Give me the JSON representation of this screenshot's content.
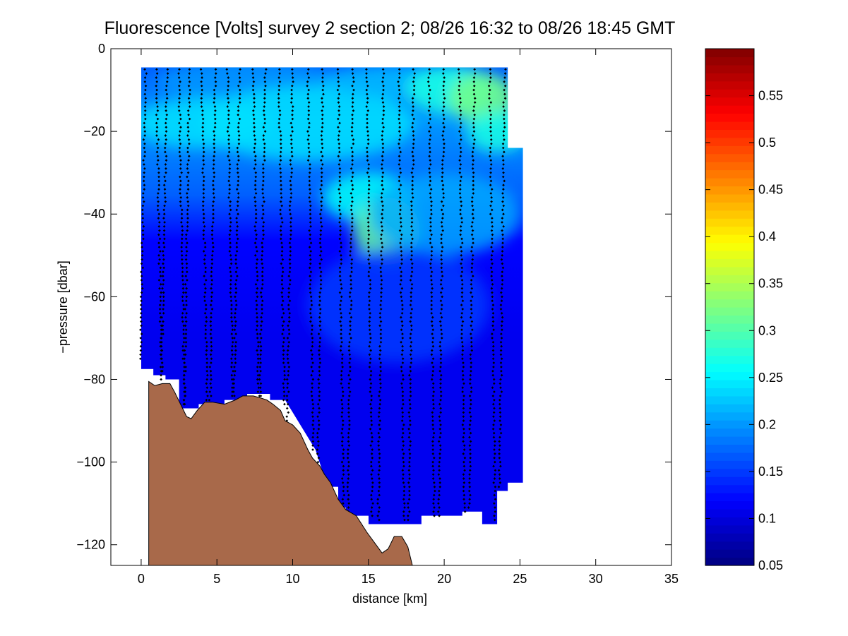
{
  "chart_data": {
    "type": "heatmap",
    "title": "Fluorescence [Volts] survey 2 section 2; 08/26 16:32 to 08/26 18:45 GMT",
    "xlabel": "distance [km]",
    "ylabel": "−pressure [dbar]",
    "xlim": [
      -2,
      35
    ],
    "ylim": [
      -125,
      0
    ],
    "x_ticks": [
      0,
      5,
      10,
      15,
      20,
      25,
      30,
      35
    ],
    "x_tick_labels": [
      "0",
      "5",
      "10",
      "15",
      "20",
      "25",
      "30",
      "35"
    ],
    "y_ticks": [
      0,
      -20,
      -40,
      -60,
      -80,
      -100,
      -120
    ],
    "y_tick_labels": [
      "0",
      "−20",
      "−40",
      "−60",
      "−80",
      "−100",
      "−120"
    ],
    "colorbar": {
      "clim": [
        0.05,
        0.6
      ],
      "ticks": [
        0.05,
        0.1,
        0.15,
        0.2,
        0.25,
        0.3,
        0.35,
        0.4,
        0.45,
        0.5,
        0.55
      ],
      "tick_labels": [
        "0.05",
        "0.1",
        "0.15",
        "0.2",
        "0.25",
        "0.3",
        "0.35",
        "0.4",
        "0.45",
        "0.5",
        "0.55"
      ],
      "colormap": "jet"
    },
    "field_top_pressure": -4.5,
    "field_bottom_boundary": [
      [
        0,
        -77.5
      ],
      [
        0.8,
        -77.5
      ],
      [
        0.8,
        -79
      ],
      [
        1.6,
        -79
      ],
      [
        1.6,
        -80
      ],
      [
        2.5,
        -80
      ],
      [
        2.5,
        -87
      ],
      [
        3.8,
        -87
      ],
      [
        3.8,
        -86
      ],
      [
        5.5,
        -86
      ],
      [
        5.5,
        -85
      ],
      [
        7,
        -85
      ],
      [
        7,
        -83.5
      ],
      [
        8.5,
        -83.5
      ],
      [
        8.5,
        -85
      ],
      [
        9.5,
        -85
      ],
      [
        10.5,
        -91
      ],
      [
        11.5,
        -97
      ],
      [
        12.3,
        -106
      ],
      [
        13,
        -106
      ],
      [
        13,
        -111
      ],
      [
        13.5,
        -111
      ],
      [
        13.5,
        -113
      ],
      [
        15,
        -113
      ],
      [
        15,
        -115
      ],
      [
        18.5,
        -115
      ],
      [
        18.5,
        -113
      ],
      [
        21.2,
        -113
      ],
      [
        21.2,
        -112
      ],
      [
        22.5,
        -112
      ],
      [
        22.5,
        -115
      ],
      [
        23.5,
        -115
      ],
      [
        23.5,
        -107
      ],
      [
        24.2,
        -107
      ],
      [
        24.2,
        -105
      ],
      [
        25.2,
        -105
      ]
    ],
    "field_right_edge": [
      [
        24.2,
        -4.5
      ],
      [
        24.2,
        -24
      ],
      [
        25.2,
        -24
      ],
      [
        25.2,
        -105
      ]
    ],
    "blobs": [
      {
        "x": 7,
        "y": -8,
        "rx": 6,
        "ry": 5,
        "value": 0.2
      },
      {
        "x": 4,
        "y": -18,
        "rx": 4.5,
        "ry": 6,
        "value": 0.24
      },
      {
        "x": 11,
        "y": -18,
        "rx": 7,
        "ry": 9,
        "value": 0.24
      },
      {
        "x": 17,
        "y": -8,
        "rx": 5,
        "ry": 4,
        "value": 0.22
      },
      {
        "x": 20.5,
        "y": -10,
        "rx": 3,
        "ry": 6,
        "value": 0.27
      },
      {
        "x": 22.5,
        "y": -12,
        "rx": 2.2,
        "ry": 6,
        "value": 0.32
      },
      {
        "x": 23.5,
        "y": -20,
        "rx": 2,
        "ry": 5,
        "value": 0.27
      },
      {
        "x": 15,
        "y": -36,
        "rx": 3,
        "ry": 6,
        "value": 0.26
      },
      {
        "x": 16.2,
        "y": -44,
        "rx": 2.2,
        "ry": 8,
        "value": 0.31
      },
      {
        "x": 20,
        "y": -40,
        "rx": 5,
        "ry": 10,
        "value": 0.21
      },
      {
        "x": 17,
        "y": -62,
        "rx": 6,
        "ry": 14,
        "value": 0.15
      }
    ],
    "profile_x": [
      0.3,
      1,
      1.7,
      2.5,
      3.2,
      4,
      4.9,
      5.7,
      6.5,
      7.4,
      8.2,
      9.1,
      10,
      11,
      12,
      13,
      14,
      14.9,
      16,
      17,
      18,
      19,
      20,
      21,
      22,
      23,
      24
    ],
    "profile_bottom": [
      -75,
      -78,
      -80,
      -86,
      -86,
      -86,
      -85,
      -84,
      -84,
      -84,
      -85,
      -86,
      -90,
      -97,
      -106,
      -110,
      -113,
      -113,
      -114,
      -114,
      -114,
      -113,
      -113,
      -112,
      -111,
      -114,
      -106
    ],
    "profile_start": -5,
    "bathymetry": [
      [
        0.5,
        -125
      ],
      [
        0.5,
        -80.5
      ],
      [
        0.9,
        -81.5
      ],
      [
        1.4,
        -81
      ],
      [
        1.9,
        -81
      ],
      [
        2.2,
        -83
      ],
      [
        2.6,
        -86
      ],
      [
        3.0,
        -89
      ],
      [
        3.3,
        -89.5
      ],
      [
        3.7,
        -87.5
      ],
      [
        4.2,
        -85.5
      ],
      [
        4.7,
        -85.5
      ],
      [
        5.5,
        -86
      ],
      [
        6.2,
        -85
      ],
      [
        6.7,
        -84
      ],
      [
        7.4,
        -84
      ],
      [
        7.9,
        -84.5
      ],
      [
        8.3,
        -85
      ],
      [
        8.7,
        -86
      ],
      [
        9.2,
        -87.5
      ],
      [
        9.5,
        -90
      ],
      [
        10,
        -91
      ],
      [
        10.5,
        -93
      ],
      [
        11,
        -97
      ],
      [
        11.3,
        -99
      ],
      [
        11.8,
        -101
      ],
      [
        12.1,
        -103
      ],
      [
        12.5,
        -105
      ],
      [
        13,
        -109
      ],
      [
        13.5,
        -111.5
      ],
      [
        14.2,
        -113
      ],
      [
        14.9,
        -117
      ],
      [
        15.5,
        -120
      ],
      [
        15.9,
        -122
      ],
      [
        16.3,
        -121
      ],
      [
        16.7,
        -118
      ],
      [
        17.2,
        -118
      ],
      [
        17.6,
        -120.5
      ],
      [
        17.9,
        -125
      ]
    ],
    "bathymetry_color": "#a8694a"
  }
}
